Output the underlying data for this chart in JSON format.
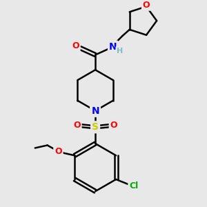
{
  "bg_color": "#e8e8e8",
  "bond_color": "#000000",
  "colors": {
    "O": "#ff0000",
    "N": "#0000ff",
    "S": "#cccc00",
    "Cl": "#00aa00",
    "H": "#7fbfbf",
    "C": "#000000"
  },
  "figsize": [
    3.0,
    3.0
  ],
  "dpi": 100
}
